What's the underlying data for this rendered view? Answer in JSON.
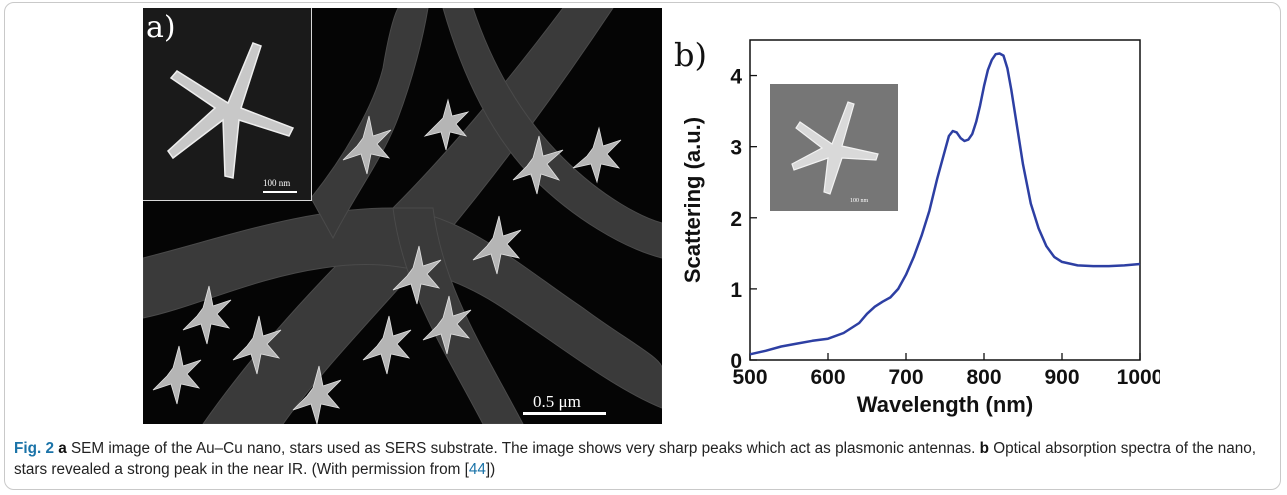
{
  "panel_a": {
    "label": "a)",
    "inset_scale": "100 nm",
    "main_scale": "0.5 μm"
  },
  "panel_b": {
    "label": "b)",
    "inset_scale": "100 nm"
  },
  "chart_data": {
    "type": "line",
    "title": "",
    "xlabel": "Wavelength (nm)",
    "ylabel": "Scattering (a.u.)",
    "xlim": [
      500,
      1000
    ],
    "ylim": [
      0,
      4.5
    ],
    "xticks": [
      "500",
      "600",
      "700",
      "800",
      "900",
      "1000"
    ],
    "yticks": [
      "0",
      "1",
      "2",
      "3",
      "4"
    ],
    "grid": false,
    "series": [
      {
        "color": "#2d3fa3",
        "x": [
          500,
          520,
          540,
          560,
          580,
          600,
          620,
          640,
          650,
          660,
          670,
          680,
          690,
          700,
          710,
          720,
          730,
          740,
          750,
          755,
          760,
          765,
          770,
          775,
          780,
          785,
          790,
          795,
          800,
          805,
          810,
          815,
          820,
          825,
          830,
          835,
          840,
          850,
          860,
          870,
          880,
          890,
          900,
          920,
          940,
          960,
          980,
          1000
        ],
        "y": [
          0.08,
          0.13,
          0.19,
          0.23,
          0.27,
          0.3,
          0.38,
          0.52,
          0.65,
          0.75,
          0.82,
          0.88,
          1.0,
          1.2,
          1.45,
          1.75,
          2.1,
          2.55,
          2.95,
          3.15,
          3.22,
          3.2,
          3.12,
          3.08,
          3.1,
          3.18,
          3.35,
          3.58,
          3.85,
          4.08,
          4.22,
          4.3,
          4.31,
          4.28,
          4.1,
          3.8,
          3.45,
          2.75,
          2.2,
          1.85,
          1.6,
          1.45,
          1.38,
          1.33,
          1.32,
          1.32,
          1.33,
          1.35
        ]
      }
    ]
  },
  "caption": {
    "fig_label": "Fig. 2",
    "part_a_label": "a",
    "part_a_text": " SEM image of the Au–Cu nano, stars used as SERS substrate. The image shows very sharp peaks which act as plasmonic antennas. ",
    "part_b_label": "b",
    "part_b_text": " Optical absorption spectra of the nano, stars revealed a strong peak in the near IR. (With permission from [",
    "ref": "44",
    "end": "])"
  }
}
